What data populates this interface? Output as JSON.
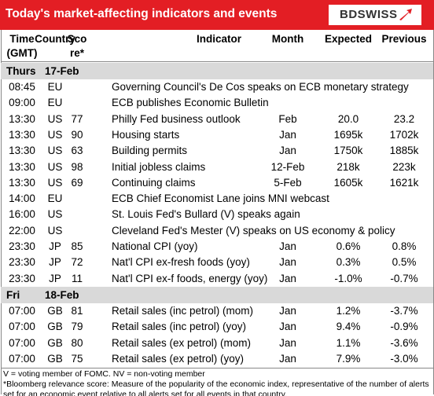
{
  "header": {
    "title": "Today's market-affecting indicators and events",
    "logo": "BDSWISS"
  },
  "columns": [
    [
      "Time",
      "(GMT)"
    ],
    [
      "Country"
    ],
    [
      "Sco",
      "re*"
    ],
    [
      "Indicator"
    ],
    [
      "Month"
    ],
    [
      "Expected"
    ],
    [
      "Previous"
    ]
  ],
  "sections": [
    {
      "day": "Thurs",
      "date": "17-Feb",
      "rows": [
        [
          "08:45",
          "EU",
          null,
          "Governing Council's De Cos speaks on ECB monetary strategy",
          null,
          null,
          null
        ],
        [
          "09:00",
          "EU",
          null,
          "ECB publishes Economic Bulletin",
          null,
          null,
          null
        ],
        [
          "13:30",
          "US",
          "77",
          "Philly Fed business outlook",
          "Feb",
          "20.0",
          "23.2"
        ],
        [
          "13:30",
          "US",
          "90",
          "Housing starts",
          "Jan",
          "1695k",
          "1702k"
        ],
        [
          "13:30",
          "US",
          "63",
          "Building permits",
          "Jan",
          "1750k",
          "1885k"
        ],
        [
          "13:30",
          "US",
          "98",
          "Initial jobless claims",
          "12-Feb",
          "218k",
          "223k"
        ],
        [
          "13:30",
          "US",
          "69",
          "Continuing claims",
          "5-Feb",
          "1605k",
          "1621k"
        ],
        [
          "14:00",
          "EU",
          null,
          "ECB Chief Economist Lane joins MNI webcast",
          null,
          null,
          null
        ],
        [
          "16:00",
          "US",
          null,
          "St. Louis Fed's Bullard (V) speaks again",
          null,
          null,
          null
        ],
        [
          "22:00",
          "US",
          null,
          "Cleveland Fed's Mester (V) speaks on US economy & policy",
          null,
          null,
          null
        ],
        [
          "23:30",
          "JP",
          "85",
          "National CPI (yoy)",
          "Jan",
          "0.6%",
          "0.8%"
        ],
        [
          "23:30",
          "JP",
          "72",
          "Nat'l CPI ex-fresh foods (yoy)",
          "Jan",
          "0.3%",
          "0.5%"
        ],
        [
          "23:30",
          "JP",
          "11",
          "Nat'l CPI ex-f foods, energy (yoy)",
          "Jan",
          "-1.0%",
          "-0.7%"
        ]
      ]
    },
    {
      "day": "Fri",
      "date": "18-Feb",
      "rows": [
        [
          "07:00",
          "GB",
          "81",
          "Retail sales (inc petrol) (mom)",
          "Jan",
          "1.2%",
          "-3.7%"
        ],
        [
          "07:00",
          "GB",
          "79",
          "Retail sales (inc petrol) (yoy)",
          "Jan",
          "9.4%",
          "-0.9%"
        ],
        [
          "07:00",
          "GB",
          "80",
          "Retail sales (ex petrol) (mom)",
          "Jan",
          "1.1%",
          "-3.6%"
        ],
        [
          "07:00",
          "GB",
          "75",
          "Retail sales (ex petrol) (yoy)",
          "Jan",
          "7.9%",
          "-3.0%"
        ]
      ]
    }
  ],
  "footnotes": [
    "V = voting member of FOMC. NV = non-voting member",
    "*Bloomberg relevance score:  Measure of the popularity of the economic index, representative of the number of alerts set for an economic event relative to all alerts set for all events in that country."
  ]
}
